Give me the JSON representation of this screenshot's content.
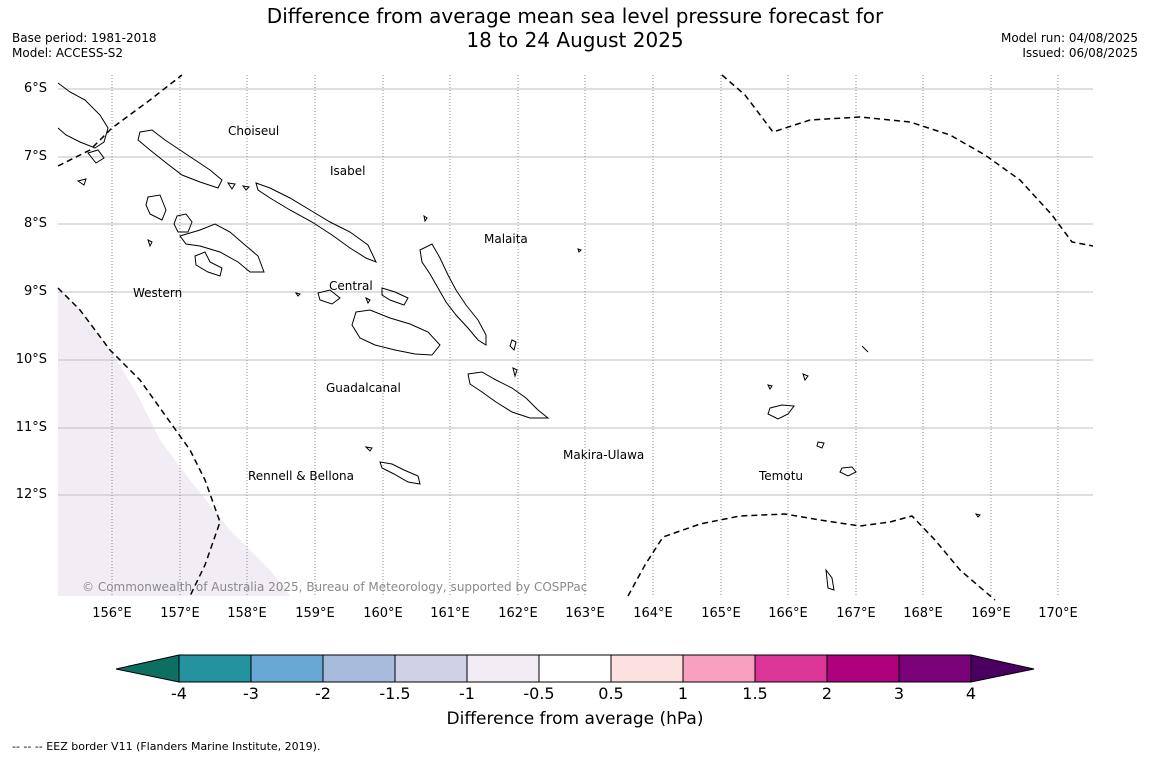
{
  "title_line1": "Difference from average mean sea level pressure forecast for",
  "title_line2": "18 to 24 August 2025",
  "meta_left": {
    "base_period": "Base period: 1981-2018",
    "model": "Model: ACCESS-S2"
  },
  "meta_right": {
    "model_run": "Model run: 04/08/2025",
    "issued": "Issued: 06/08/2025"
  },
  "latitudes": [
    "6°S",
    "7°S",
    "8°S",
    "9°S",
    "10°S",
    "11°S",
    "12°S"
  ],
  "longitudes": [
    "156°E",
    "157°E",
    "158°E",
    "159°E",
    "160°E",
    "161°E",
    "162°E",
    "163°E",
    "164°E",
    "165°E",
    "166°E",
    "167°E",
    "168°E",
    "169°E",
    "170°E"
  ],
  "regions": {
    "choiseul": "Choiseul",
    "isabel": "Isabel",
    "malaita": "Malaita",
    "western": "Western",
    "central": "Central",
    "guadalcanal": "Guadalcanal",
    "makira": "Makira-Ulawa",
    "rennell": "Rennell & Bellona",
    "temotu": "Temotu"
  },
  "copyright": "© Commonwealth of Australia 2025, Bureau of Meteorology, supported by COSPPac",
  "colorbar": {
    "label": "Difference from average (hPa)",
    "ticks": [
      "-4",
      "-3",
      "-2",
      "-1.5",
      "-1",
      "-0.5",
      "0.5",
      "1",
      "1.5",
      "2",
      "3",
      "4"
    ],
    "colors": [
      "#0d6e62",
      "#2592a0",
      "#68a8d4",
      "#a7bbdc",
      "#d0d1e6",
      "#f2edf4",
      "#ffffff",
      "#fde0e0",
      "#f8a0bf",
      "#dc3598",
      "#ae017e",
      "#7a0177",
      "#4b0061"
    ]
  },
  "shading_color": "#f2edf4",
  "footnote": "--  --  -- EEZ border V11 (Flanders Marine Institute, 2019)."
}
